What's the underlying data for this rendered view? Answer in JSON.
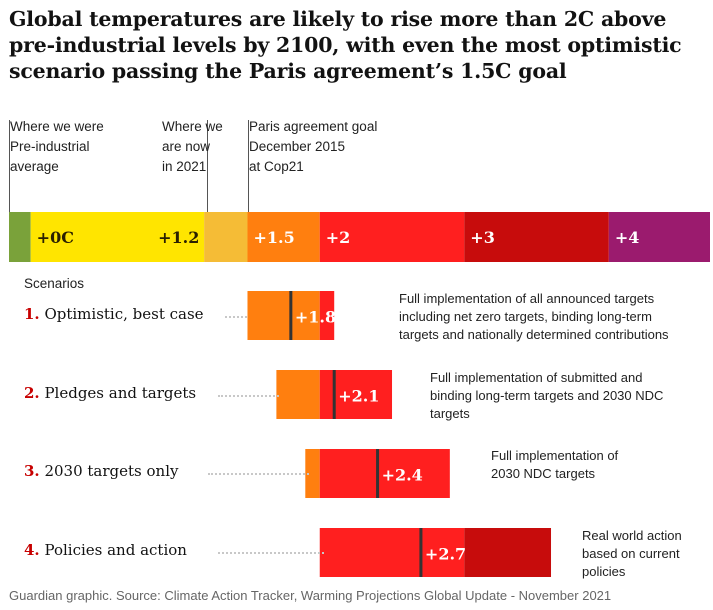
{
  "title": "Global temperatures are likely to rise more than 2C above pre-industrial levels by 2100, with even the most optimistic scenario passing the Paris agreement’s 1.5C goal",
  "annotations": {
    "were": "Where we were\nPre-industrial\naverage",
    "now": "Where we\nare now\nin 2021",
    "paris": "Paris agreement goal\nDecember 2015\nat Cop21"
  },
  "scenarios_heading": "Scenarios",
  "footer": "Guardian graphic. Source: Climate Action Tracker, Warming Projections Global Update - November 2021",
  "colors": {
    "green": "#7aa23a",
    "yellow": "#ffe500",
    "amber": "#f5bc36",
    "orange": "#ff7f0f",
    "red": "#ff1f1f",
    "darkred": "#c70c0c",
    "purple": "#9b1b6e",
    "marker": "#333333"
  },
  "chart_data": {
    "type": "bar",
    "scale": {
      "segments": [
        {
          "label": "",
          "from": -0.15,
          "to": 0,
          "color": "green"
        },
        {
          "label": "+0C",
          "from": 0,
          "to": 1.2,
          "color": "yellow"
        },
        {
          "label": "+1.2",
          "from": 1.2,
          "to": 1.5,
          "color": "amber"
        },
        {
          "label": "+1.5",
          "from": 1.5,
          "to": 2,
          "color": "orange"
        },
        {
          "label": "+2",
          "from": 2,
          "to": 3,
          "color": "red"
        },
        {
          "label": "+3",
          "from": 3,
          "to": 4,
          "color": "darkred"
        },
        {
          "label": "+4",
          "from": 4,
          "to": 4.7,
          "color": "purple"
        }
      ],
      "markers": [
        0,
        1.2,
        1.5
      ]
    },
    "scenarios": [
      {
        "num": "1.",
        "name": "Optimistic, best case",
        "low": 1.5,
        "high": 2.1,
        "value": 1.8,
        "label": "+1.8",
        "description": "Full implementation of all announced targets\nincluding net zero targets, binding long-term\ntargets and nationally determined contributions"
      },
      {
        "num": "2.",
        "name": "Pledges and targets",
        "low": 1.7,
        "high": 2.5,
        "value": 2.1,
        "label": "+2.1",
        "description": "Full implementation of submitted and\nbinding long-term targets and 2030 NDC\ntargets"
      },
      {
        "num": "3.",
        "name": "2030 targets only",
        "low": 1.9,
        "high": 2.9,
        "value": 2.4,
        "label": "+2.4",
        "description": "Full implementation of\n2030 NDC targets"
      },
      {
        "num": "4.",
        "name": "Policies and action",
        "low": 2.0,
        "high": 3.6,
        "value": 2.7,
        "label": "+2.7",
        "description": "Real world action\nbased on current\npolicies"
      }
    ]
  }
}
